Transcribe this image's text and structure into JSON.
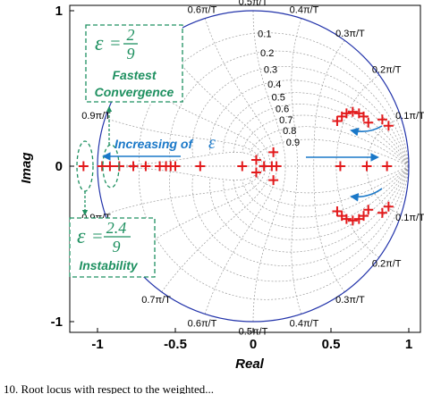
{
  "chart_data": {
    "type": "scatter",
    "subtype": "pole-zero map (z-plane)",
    "xlabel": "Real",
    "ylabel": "Imag",
    "xlim": [
      -1.25,
      1.05
    ],
    "ylim": [
      -1.05,
      1.05
    ],
    "x_ticks": [
      "-1",
      "-0.5",
      "0",
      "0.5",
      "1"
    ],
    "y_ticks": [
      "1",
      "0",
      "-1"
    ],
    "grid": true,
    "unit_circle": true,
    "natural_frequency_labels": [
      "0.1π/T",
      "0.2π/T",
      "0.3π/T",
      "0.4π/T",
      "0.5π/T",
      "0.6π/T",
      "0.7π/T",
      "0.8π/T",
      "0.9π/T"
    ],
    "damping_labels": [
      "0.1",
      "0.2",
      "0.3",
      "0.4",
      "0.5",
      "0.6",
      "0.7",
      "0.8",
      "0.9"
    ],
    "series": [
      {
        "marker": "+",
        "color": "#e31a1c",
        "points": [
          [
            -1.09,
            0
          ],
          [
            -0.97,
            0
          ],
          [
            -0.92,
            0
          ],
          [
            -0.86,
            0
          ],
          [
            -0.77,
            0
          ],
          [
            -0.69,
            0
          ],
          [
            -0.6,
            0
          ],
          [
            -0.56,
            0
          ],
          [
            -0.53,
            0
          ],
          [
            -0.5,
            0
          ],
          [
            -0.34,
            0
          ],
          [
            -0.07,
            0
          ],
          [
            0.07,
            0
          ],
          [
            0.12,
            0
          ],
          [
            0.15,
            0
          ],
          [
            0.02,
            0.04
          ],
          [
            0.02,
            -0.04
          ],
          [
            0.13,
            0.09
          ],
          [
            0.13,
            -0.09
          ],
          [
            0.56,
            0
          ],
          [
            0.73,
            0
          ],
          [
            0.86,
            0
          ],
          [
            0.54,
            0.29
          ],
          [
            0.57,
            0.32
          ],
          [
            0.6,
            0.34
          ],
          [
            0.64,
            0.35
          ],
          [
            0.68,
            0.34
          ],
          [
            0.71,
            0.32
          ],
          [
            0.74,
            0.28
          ],
          [
            0.83,
            0.3
          ],
          [
            0.87,
            0.26
          ],
          [
            0.54,
            -0.29
          ],
          [
            0.57,
            -0.32
          ],
          [
            0.6,
            -0.34
          ],
          [
            0.64,
            -0.35
          ],
          [
            0.68,
            -0.34
          ],
          [
            0.71,
            -0.32
          ],
          [
            0.74,
            -0.28
          ],
          [
            0.83,
            -0.3
          ],
          [
            0.87,
            -0.26
          ]
        ]
      }
    ],
    "annotations": {
      "top_box": {
        "eps_num": "2",
        "eps_den": "9",
        "line1": "Fastest",
        "line2": "Convergence"
      },
      "bottom_box": {
        "eps_num": "2.4",
        "eps_den": "9",
        "line1": "Instability"
      },
      "arrow_label": "Increasing of"
    },
    "colors": {
      "unit_circle": "#2233aa",
      "grid": "#9a9a9a",
      "poles": "#e31a1c",
      "annotation_green": "#1e9060",
      "annotation_blue": "#1a78c8"
    }
  },
  "caption": "10. Root locus with respect to the weighted..."
}
